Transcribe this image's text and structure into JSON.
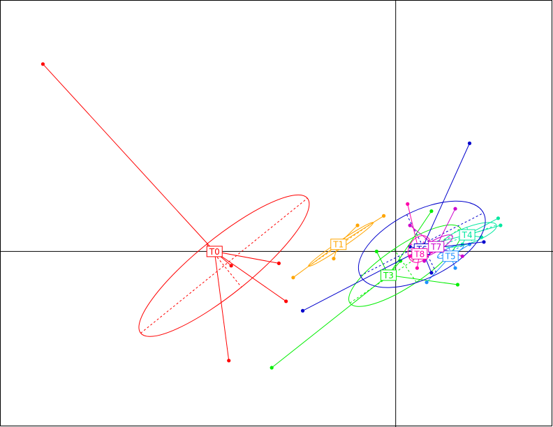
{
  "chart_data": {
    "type": "scatter",
    "title": "",
    "xlabel": "",
    "ylabel": "",
    "xlim": [
      -8.3,
      3.3
    ],
    "ylim": [
      -3.7,
      5.3
    ],
    "grid": false,
    "axes": "crosshair through origin",
    "groups": [
      {
        "name": "T0",
        "color": "#ff0000",
        "centroid": [
          -3.8,
          0.0
        ],
        "points": [
          [
            -7.4,
            3.95
          ],
          [
            -3.45,
            -0.3
          ],
          [
            -2.45,
            -0.25
          ],
          [
            -2.3,
            -1.05
          ],
          [
            -3.5,
            -2.3
          ]
        ],
        "ellipse": {
          "cx": -3.6,
          "cy": -0.3,
          "rx": 2.25,
          "ry": 0.58,
          "angle_deg": 39
        }
      },
      {
        "name": "T1",
        "color": "#ffa500",
        "centroid": [
          -1.2,
          0.15
        ],
        "points": [
          [
            -2.15,
            -0.55
          ],
          [
            -0.25,
            0.75
          ],
          [
            -0.8,
            0.55
          ],
          [
            -1.3,
            -0.15
          ]
        ],
        "ellipse": {
          "cx": -1.15,
          "cy": 0.15,
          "rx": 0.82,
          "ry": 0.07,
          "angle_deg": 34
        }
      },
      {
        "name": "T3",
        "color": "#00ee00",
        "centroid": [
          -0.15,
          -0.5
        ],
        "points": [
          [
            -2.6,
            -2.45
          ],
          [
            0.75,
            0.85
          ],
          [
            -0.4,
            0.0
          ],
          [
            1.3,
            -0.7
          ],
          [
            0.1,
            -0.2
          ]
        ],
        "ellipse": {
          "cx": 0.2,
          "cy": -0.3,
          "rx": 1.4,
          "ry": 0.42,
          "angle_deg": 34
        }
      },
      {
        "name": "T4",
        "color": "#00e8a0",
        "centroid": [
          1.5,
          0.35
        ],
        "points": [
          [
            2.15,
            0.7
          ],
          [
            2.2,
            0.55
          ],
          [
            0.9,
            0.2
          ],
          [
            1.4,
            0.15
          ],
          [
            1.8,
            0.3
          ]
        ],
        "ellipse": {
          "cx": 1.55,
          "cy": 0.35,
          "rx": 0.6,
          "ry": 0.17,
          "angle_deg": 20
        }
      },
      {
        "name": "T5",
        "color": "#1e90ff",
        "centroid": [
          1.15,
          -0.1
        ],
        "points": [
          [
            0.65,
            -0.65
          ],
          [
            1.25,
            -0.35
          ],
          [
            0.95,
            0.0
          ],
          [
            1.55,
            0.15
          ]
        ],
        "ellipse": {
          "cx": 1.15,
          "cy": 0.0,
          "rx": 0.3,
          "ry": 0.08,
          "angle_deg": 25
        }
      },
      {
        "name": "T6",
        "color": "#0000cc",
        "centroid": [
          0.55,
          0.05
        ],
        "points": [
          [
            1.55,
            2.28
          ],
          [
            -1.95,
            -1.25
          ],
          [
            1.85,
            0.2
          ],
          [
            0.75,
            -0.45
          ],
          [
            0.3,
            0.1
          ]
        ],
        "ellipse": {
          "cx": 0.55,
          "cy": 0.15,
          "rx": 1.45,
          "ry": 0.7,
          "angle_deg": 27
        }
      },
      {
        "name": "T7",
        "color": "#cc00cc",
        "centroid": [
          0.85,
          0.1
        ],
        "points": [
          [
            1.25,
            0.9
          ],
          [
            0.3,
            0.55
          ],
          [
            1.4,
            -0.1
          ],
          [
            0.6,
            -0.2
          ]
        ],
        "ellipse": {
          "cx": 0.8,
          "cy": 0.1,
          "rx": 0.45,
          "ry": 0.12,
          "angle_deg": 30
        }
      },
      {
        "name": "T8",
        "color": "#ff00aa",
        "centroid": [
          0.5,
          -0.05
        ],
        "points": [
          [
            0.25,
            1.0
          ],
          [
            0.75,
            0.0
          ],
          [
            0.45,
            -0.35
          ],
          [
            0.3,
            -0.1
          ]
        ],
        "ellipse": {
          "cx": 0.5,
          "cy": 0.05,
          "rx": 0.3,
          "ry": 0.22,
          "angle_deg": 60
        }
      }
    ]
  }
}
